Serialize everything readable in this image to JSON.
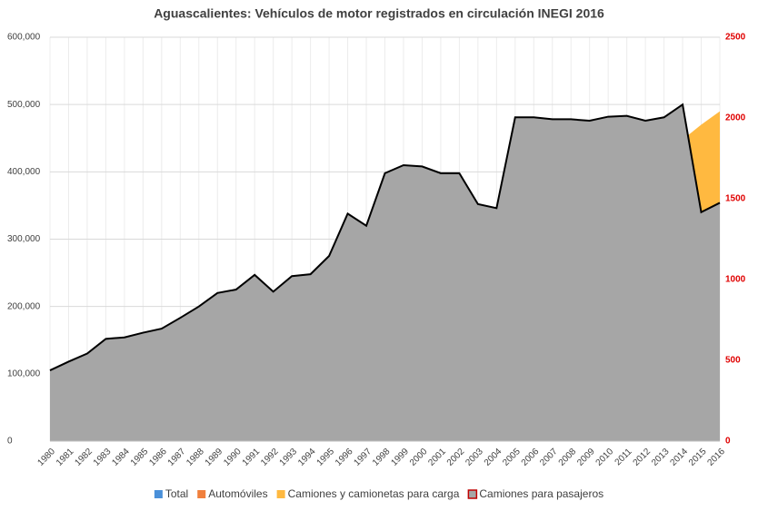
{
  "chart_data": {
    "type": "area",
    "title": "Aguascalientes: Vehículos de motor registrados en circulación INEGI 2016",
    "categories": [
      "1980",
      "1981",
      "1982",
      "1983",
      "1984",
      "1985",
      "1986",
      "1987",
      "1988",
      "1989",
      "1990",
      "1991",
      "1992",
      "1993",
      "1994",
      "1995",
      "1996",
      "1997",
      "1998",
      "1999",
      "2000",
      "2001",
      "2002",
      "2003",
      "2004",
      "2005",
      "2006",
      "2007",
      "2008",
      "2009",
      "2010",
      "2011",
      "2012",
      "2013",
      "2014",
      "2015",
      "2016"
    ],
    "series": [
      {
        "name": "Total",
        "color": "#4a90d9",
        "values": [
          null,
          null,
          null,
          null,
          null,
          null,
          null,
          null,
          null,
          null,
          null,
          null,
          null,
          null,
          null,
          null,
          null,
          null,
          null,
          null,
          null,
          null,
          null,
          null,
          null,
          null,
          null,
          null,
          null,
          null,
          null,
          null,
          null,
          null,
          null,
          null,
          null
        ]
      },
      {
        "name": "Automóviles",
        "color": "#f07f3c",
        "values": [
          null,
          null,
          null,
          null,
          null,
          null,
          null,
          null,
          null,
          null,
          null,
          null,
          null,
          null,
          null,
          null,
          null,
          null,
          null,
          null,
          null,
          null,
          null,
          null,
          null,
          null,
          null,
          null,
          null,
          null,
          null,
          null,
          null,
          null,
          null,
          null,
          null
        ]
      },
      {
        "name": "Camiones y camionetas para carga",
        "color": "#ffb940",
        "values": [
          null,
          null,
          null,
          null,
          null,
          null,
          null,
          null,
          null,
          null,
          null,
          null,
          null,
          null,
          null,
          null,
          null,
          null,
          null,
          null,
          null,
          null,
          null,
          null,
          null,
          null,
          null,
          null,
          null,
          null,
          null,
          null,
          null,
          null,
          448000,
          470000,
          490000
        ]
      },
      {
        "name": "Camiones para pasajeros",
        "color": "#a6a6a6",
        "line_color": "#000000",
        "legend_border": "#c00000",
        "axis": "y2",
        "values": [
          438,
          492,
          542,
          633,
          642,
          671,
          696,
          763,
          833,
          917,
          938,
          1029,
          925,
          1021,
          1033,
          1146,
          1408,
          1333,
          1658,
          1708,
          1700,
          1658,
          1658,
          1467,
          1442,
          2004,
          2004,
          1992,
          1992,
          1983,
          2008,
          2013,
          1983,
          2004,
          2083,
          1417,
          1475
        ]
      }
    ],
    "ylim": [
      0,
      600000
    ],
    "yticks": [
      0,
      {
        "value": 100000,
        "label": "100,000"
      },
      {
        "value": 200000,
        "label": "200,000"
      },
      {
        "value": 300000,
        "label": "300,000"
      },
      {
        "value": 400000,
        "label": "400,000"
      },
      {
        "value": 500000,
        "label": "500,000"
      },
      {
        "value": 600000,
        "label": "600,000"
      }
    ],
    "y2lim": [
      0,
      2500
    ],
    "y2ticks": [
      0,
      500,
      1000,
      1500,
      2000,
      2500
    ],
    "y2_color": "#e00000",
    "grid": true,
    "legend": "bottom"
  }
}
